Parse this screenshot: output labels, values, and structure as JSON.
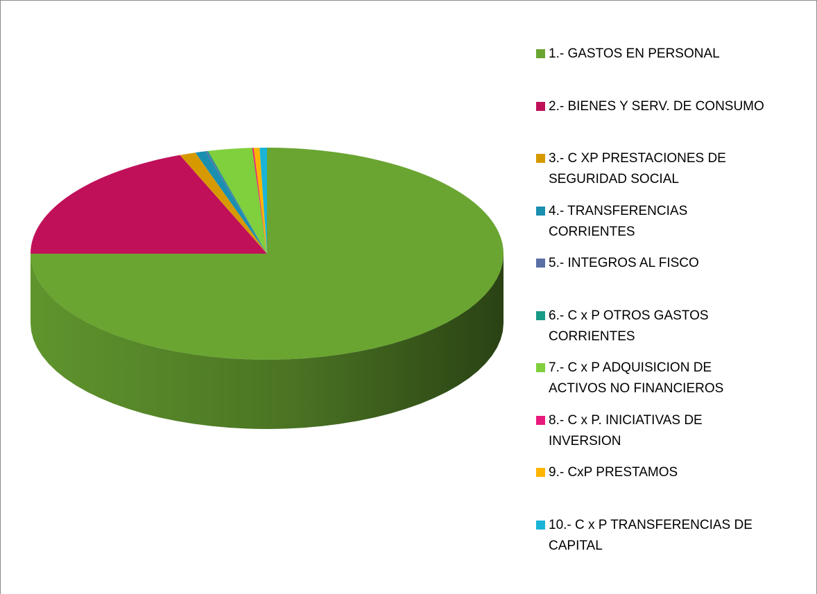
{
  "chart_data": {
    "type": "pie",
    "categories": [
      "1.- GASTOS EN PERSONAL",
      "2.- BIENES Y SERV. DE CONSUMO",
      "3.- C XP PRESTACIONES DE\nSEGURIDAD SOCIAL",
      "4.- TRANSFERENCIAS\nCORRIENTES",
      "5.- INTEGROS AL FISCO",
      "6.- C x P OTROS GASTOS\nCORRIENTES",
      "7.- C x P ADQUISICION DE\nACTIVOS NO FINANCIEROS",
      "8.- C x P. INICIATIVAS DE\nINVERSION",
      "9.- CxP PRESTAMOS",
      "10.- C x P TRANSFERENCIAS DE\nCAPITAL"
    ],
    "values": [
      75.0,
      19.0,
      1.1,
      0.7,
      0.1,
      0.1,
      3.0,
      0.1,
      0.4,
      0.5
    ],
    "colors": [
      "#6aa532",
      "#c0105a",
      "#d69a00",
      "#1a8fb0",
      "#5b6fa6",
      "#1a9a88",
      "#80cf3c",
      "#e81a7a",
      "#ffb400",
      "#19b4d8"
    ],
    "legend": "right"
  }
}
